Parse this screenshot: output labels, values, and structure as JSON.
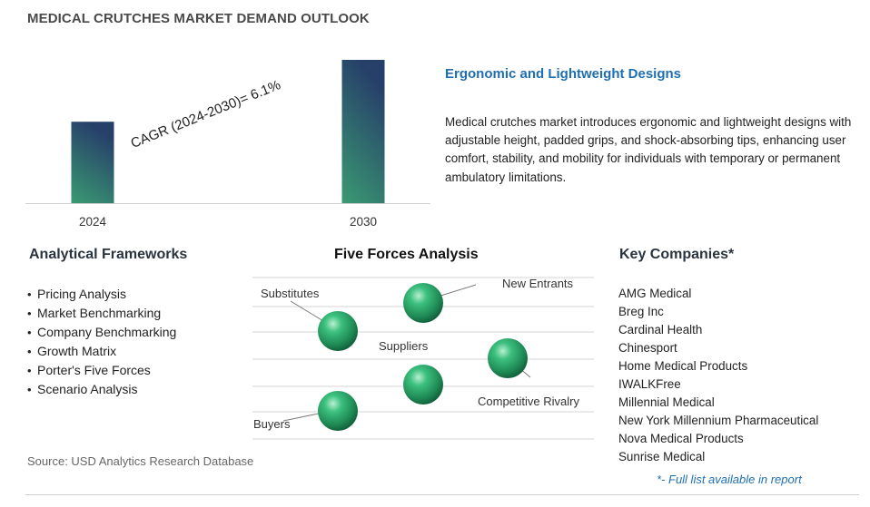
{
  "title": "MEDICAL CRUTCHES MARKET DEMAND OUTLOOK",
  "chart_data": {
    "type": "bar",
    "categories": [
      "2024",
      "2030"
    ],
    "series": [
      {
        "values": [
          1.0,
          1.76
        ]
      }
    ],
    "value_note": "relative bar heights, no value axis printed",
    "annotation": "CAGR (2024-2030)=  6.1%",
    "grid": false,
    "bar_gradient": [
      "#3a9a72",
      "#27406a"
    ]
  },
  "feature": {
    "title": "Ergonomic and Lightweight Designs",
    "description": "Medical crutches market introduces ergonomic and lightweight designs with adjustable height, padded grips, and shock-absorbing tips, enhancing user comfort, stability, and mobility for individuals with temporary or permanent ambulatory limitations."
  },
  "frameworks": {
    "title": "Analytical Frameworks",
    "items": [
      "Pricing Analysis",
      "Market Benchmarking",
      "Company Benchmarking",
      "Growth Matrix",
      "Porter's Five Forces",
      "Scenario Analysis"
    ]
  },
  "five_forces": {
    "title": "Five Forces Analysis",
    "labels": {
      "substitutes": "Substitutes",
      "new_entrants": "New Entrants",
      "suppliers": "Suppliers",
      "competitive_rivalry": "Competitive Rivalry",
      "buyers": "Buyers"
    }
  },
  "companies": {
    "title": "Key Companies*",
    "items": [
      "AMG Medical",
      "Breg Inc",
      "Cardinal Health",
      "Chinesport",
      "Home Medical Products",
      "IWALKFree",
      "Millennial Medical",
      "New York Millennium Pharmaceutical",
      "Nova Medical Products",
      "Sunrise Medical"
    ],
    "note": "*- Full list available in report"
  },
  "source": "Source: USD Analytics Research Database",
  "colors": {
    "accent_blue": "#1f6fb0",
    "sphere_green": "#2aa86a"
  }
}
